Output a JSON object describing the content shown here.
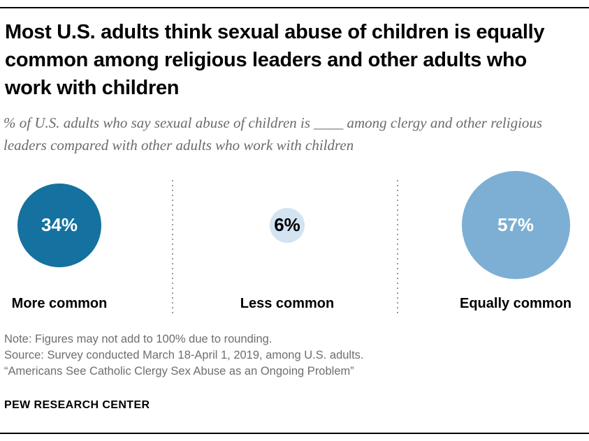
{
  "chart_data": {
    "type": "bubble",
    "title": "Most U.S. adults think sexual abuse of children is equally common among religious leaders and other adults who work with children",
    "subtitle": "% of U.S. adults who say sexual abuse of children is ____ among clergy and other religious leaders compared with other adults who work with children",
    "categories": [
      "More common",
      "Less common",
      "Equally common"
    ],
    "values": [
      34,
      6,
      57
    ],
    "value_labels": [
      "34%",
      "6%",
      "57%"
    ],
    "unit": "%",
    "bubble_colors": [
      "#15719F",
      "#D3E3F1",
      "#7CAFD3"
    ],
    "value_label_colors": [
      "#FFFFFF",
      "#000000",
      "#FFFFFF"
    ],
    "layout": {
      "arrangement": "horizontal-triptych",
      "area_proportional_circles": true,
      "dotted_dividers_between_columns": true,
      "divider_color": "#9A9A9A"
    }
  },
  "footer": {
    "note": "Note: Figures may not add to 100% due to rounding.",
    "source": "Source: Survey conducted March 18-April 1, 2019, among U.S. adults.",
    "report": "“Americans See Catholic Clergy Sex Abuse as an Ongoing Problem”",
    "brand": "PEW RESEARCH CENTER"
  }
}
